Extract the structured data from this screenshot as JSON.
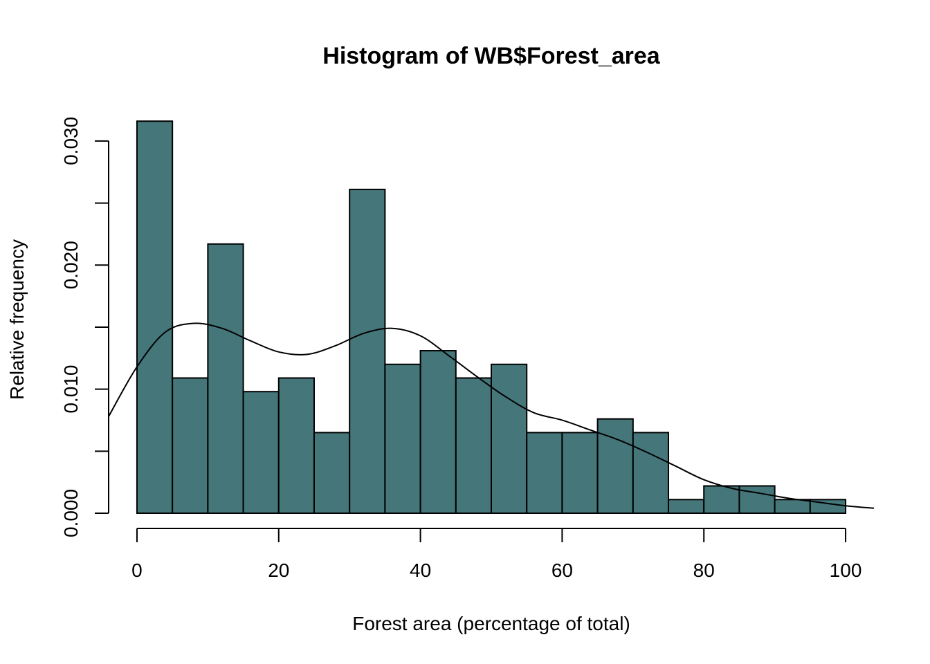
{
  "chart_data": {
    "type": "bar",
    "title": "Histogram of WB$Forest_area",
    "xlabel": "Forest area (percentage of total)",
    "ylabel": "Relative frequency",
    "bar_color": "#44767A",
    "bin_edges": [
      0,
      5,
      10,
      15,
      20,
      25,
      30,
      35,
      40,
      45,
      50,
      55,
      60,
      65,
      70,
      75,
      80,
      85,
      90,
      95,
      100
    ],
    "values": [
      0.0316,
      0.0109,
      0.0217,
      0.0098,
      0.0109,
      0.0065,
      0.0261,
      0.012,
      0.0131,
      0.0109,
      0.012,
      0.0065,
      0.0065,
      0.0076,
      0.0065,
      0.0011,
      0.0022,
      0.0022,
      0.0011,
      0.0011
    ],
    "xlim": [
      -4,
      104
    ],
    "ylim": [
      0,
      0.032
    ],
    "x_ticks": [
      "0",
      "20",
      "40",
      "60",
      "80",
      "100"
    ],
    "y_ticks": [
      "0.000",
      "0.010",
      "0.020",
      "0.030"
    ],
    "y_minor_ticks": [
      0.005,
      0.015,
      0.025
    ],
    "density": {
      "x": [
        -4,
        0,
        4,
        8,
        12,
        16,
        20,
        24,
        28,
        32,
        36,
        40,
        44,
        48,
        52,
        56,
        60,
        64,
        68,
        72,
        76,
        80,
        84,
        88,
        92,
        96,
        100,
        104
      ],
      "y": [
        0.0078,
        0.0118,
        0.0146,
        0.0153,
        0.0149,
        0.0139,
        0.013,
        0.0128,
        0.0135,
        0.0145,
        0.0149,
        0.0143,
        0.0127,
        0.011,
        0.0094,
        0.0081,
        0.0075,
        0.0067,
        0.0059,
        0.0049,
        0.0038,
        0.0027,
        0.002,
        0.0016,
        0.0012,
        0.0009,
        0.0006,
        0.0004
      ]
    }
  }
}
